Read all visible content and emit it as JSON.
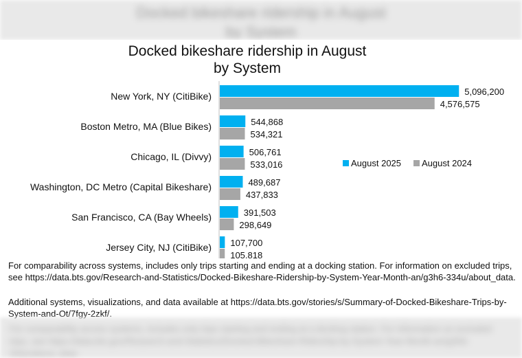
{
  "chart_data": {
    "type": "bar",
    "orientation": "horizontal",
    "title": "Docked bikeshare ridership in August by System",
    "title_lines": [
      "Docked bikeshare ridership in August",
      "by System"
    ],
    "categories": [
      "New York, NY (CitiBike)",
      "Boston Metro, MA (Blue Bikes)",
      "Chicago, IL (Divvy)",
      "Washington, DC Metro (Capital Bikeshare)",
      "San Francisco, CA (Bay Wheels)",
      "Jersey City, NJ (CitiBike)"
    ],
    "series": [
      {
        "name": "August 2025",
        "color": "#00b0f0",
        "values": [
          5096200,
          544868,
          506761,
          489687,
          391503,
          107700
        ],
        "labels": [
          "5,096,200",
          "544,868",
          "506,761",
          "489,687",
          "391,503",
          "107,700"
        ]
      },
      {
        "name": "August 2024",
        "color": "#a6a6a6",
        "values": [
          4576575,
          534321,
          533016,
          437833,
          298649,
          105818
        ],
        "labels": [
          "4,576,575",
          "534,321",
          "533,016",
          "437,833",
          "298,649",
          "105,818"
        ]
      }
    ],
    "xlim": [
      0,
      6000000
    ],
    "grid": false,
    "legend_position": "right"
  },
  "footnotes": {
    "comparability": "For comparability across systems, includes only trips starting and ending at a docking station. For information on excluded trips, see https://data.bts.gov/Research-and-Statistics/Docked-Bikeshare-Ridership-by-System-Year-Month-an/g3h6-334u/about_data.",
    "additional": "Additional systems, visualizations, and data available at https://data.bts.gov/stories/s/Summary-of-Docked-Bikeshare-Trips-by-System-and-Ot/7fgy-2zkf/."
  },
  "colors": {
    "axis": "#bfbfbf",
    "text": "#111111"
  }
}
